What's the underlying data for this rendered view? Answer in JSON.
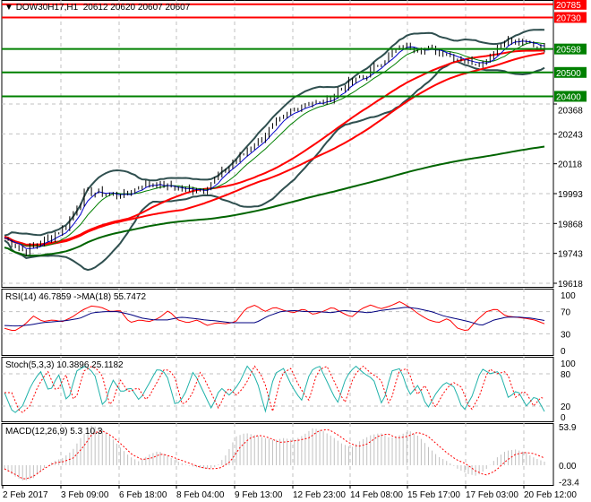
{
  "header": {
    "arrow": "▼",
    "symbol": "DOW30H17,H1",
    "ohlc": "20612 20620 20607 20607"
  },
  "colors": {
    "bull": "#000000",
    "ma_fast": "#0000cc",
    "ma_mid": "#008000",
    "ma_slow_red": "#ff0000",
    "ma_200": "#006400",
    "bands": "#2f4f4f",
    "level_red": "#ff0000",
    "level_green": "#008000",
    "rsi": "#ff0000",
    "rsi_ma": "#000080",
    "stoch_main": "#20b2aa",
    "stoch_signal": "#ff0000",
    "macd_hist": "#c0c0c0",
    "macd_signal": "#ff0000"
  },
  "chart_data": {
    "type": "line",
    "price_axis": {
      "min": 19618,
      "max": 20800,
      "ticks": [
        "20368",
        "20243",
        "20118",
        "19993",
        "19868",
        "19743",
        "19618"
      ]
    },
    "levels": [
      {
        "label": "20785",
        "value": 20785,
        "color": "red"
      },
      {
        "label": "20730",
        "value": 20730,
        "color": "red"
      },
      {
        "label": "20598",
        "value": 20598,
        "color": "green"
      },
      {
        "label": "20500",
        "value": 20500,
        "color": "green"
      },
      {
        "label": "20400",
        "value": 20400,
        "color": "green"
      }
    ],
    "close_anchors": [
      19808,
      19753,
      19798,
      19846,
      19996,
      19996,
      19985,
      20037,
      20025,
      20010,
      20015,
      20090,
      20165,
      20240,
      20315,
      20372,
      20372,
      20446,
      20483,
      20559,
      20615,
      20597,
      20585,
      20548,
      20545,
      20634,
      20622,
      20608
    ],
    "rsi": {
      "label": "RSI(14) 46.7859  ->MA(18) 55.7472",
      "ticks": [
        "100",
        "70",
        "30",
        "0"
      ],
      "values": [
        40,
        35,
        45,
        62,
        52,
        55,
        52,
        60,
        72,
        80,
        78,
        70,
        72,
        50,
        55,
        52,
        58,
        72,
        55,
        50,
        55,
        45,
        50,
        48,
        52,
        75,
        82,
        70,
        78,
        72,
        68,
        75,
        65,
        70,
        78,
        68,
        60,
        75,
        82,
        75,
        80,
        88,
        78,
        65,
        55,
        50,
        58,
        40,
        35,
        55,
        70,
        75,
        62,
        60,
        58,
        55,
        48
      ],
      "ma_values": [
        45,
        44,
        46,
        50,
        52,
        54,
        58,
        68,
        70,
        70,
        65,
        58,
        55,
        55,
        60,
        58,
        55,
        53,
        50,
        50,
        50,
        62,
        70,
        72,
        70,
        70,
        68,
        72,
        70,
        68,
        72,
        75,
        78,
        75,
        70,
        62,
        57,
        52,
        45,
        55,
        60,
        60,
        58,
        54
      ]
    },
    "stoch": {
      "label": "Stoch(5,3,3) 10.3896 25.1182",
      "ticks": [
        "100",
        "80",
        "20",
        "0"
      ],
      "values": [
        45,
        5,
        20,
        60,
        85,
        45,
        80,
        25,
        85,
        95,
        80,
        15,
        70,
        45,
        55,
        30,
        60,
        90,
        80,
        20,
        40,
        85,
        50,
        15,
        55,
        40,
        60,
        95,
        70,
        10,
        80,
        90,
        55,
        30,
        85,
        95,
        60,
        25,
        75,
        95,
        80,
        70,
        20,
        85,
        90,
        40,
        60,
        15,
        45,
        65,
        55,
        10,
        40,
        90,
        80,
        85,
        35,
        50,
        20,
        40,
        10
      ]
    },
    "macd": {
      "label": "MACD(12,26,9) 5.3 10.3",
      "ticks": [
        "53.9",
        "0.00",
        "-23.4"
      ],
      "hist": [
        -5,
        -15,
        -22,
        -18,
        -5,
        5,
        10,
        20,
        40,
        55,
        52,
        40,
        25,
        12,
        5,
        15,
        20,
        12,
        5,
        0,
        -3,
        -5,
        -2,
        15,
        40,
        45,
        42,
        38,
        35,
        38,
        35,
        42,
        52,
        48,
        40,
        30,
        25,
        35,
        42,
        45,
        38,
        42,
        48,
        40,
        25,
        12,
        5,
        -5,
        -12,
        -15,
        -5,
        10,
        20,
        22,
        18,
        10,
        5
      ],
      "signal": [
        -5,
        -12,
        -20,
        -15,
        -5,
        3,
        5,
        10,
        25,
        45,
        48,
        40,
        28,
        15,
        8,
        10,
        16,
        12,
        7,
        2,
        -3,
        -5,
        -4,
        5,
        25,
        38,
        42,
        38,
        32,
        33,
        35,
        38,
        48,
        50,
        42,
        32,
        26,
        30,
        40,
        44,
        38,
        40,
        46,
        42,
        30,
        18,
        8,
        2,
        -8,
        -14,
        -8,
        5,
        15,
        18,
        16,
        10
      ]
    }
  },
  "time_axis": [
    "2 Feb 2017",
    "3 Feb 09:00",
    "6 Feb 18:00",
    "8 Feb 04:00",
    "9 Feb 13:00",
    "12 Feb 23:00",
    "14 Feb 08:00",
    "15 Feb 17:00",
    "17 Feb 03:00",
    "20 Feb 12:00"
  ]
}
